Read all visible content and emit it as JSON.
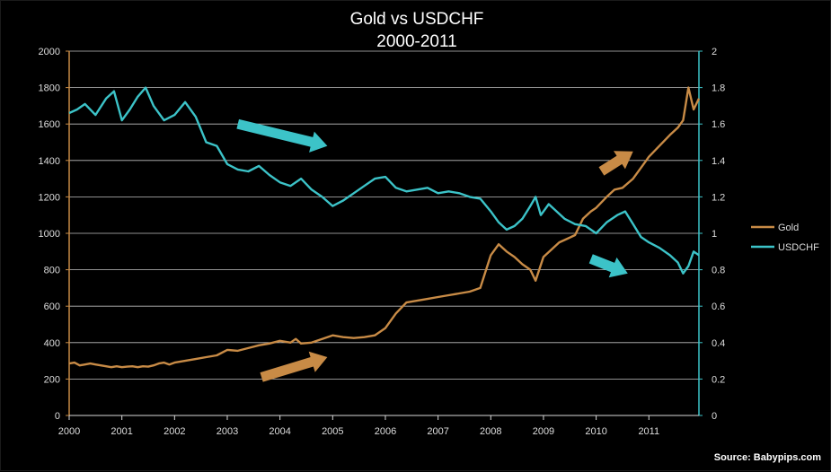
{
  "chart_data": {
    "type": "line",
    "title": "Gold vs USDCHF",
    "subtitle": "2000-2011",
    "source": "Source: Babypips.com",
    "x_ticks": [
      "2000",
      "2001",
      "2002",
      "2003",
      "2004",
      "2005",
      "2006",
      "2007",
      "2008",
      "2009",
      "2010",
      "2011"
    ],
    "xlim": [
      2000,
      2011.95
    ],
    "y_left": {
      "min": 0,
      "max": 2000,
      "ticks": [
        "0",
        "200",
        "400",
        "600",
        "800",
        "1000",
        "1200",
        "1400",
        "1600",
        "1800",
        "2000"
      ]
    },
    "y_right": {
      "min": 0,
      "max": 2,
      "ticks": [
        "0",
        "0.2",
        "0.4",
        "0.6",
        "0.8",
        "1",
        "1.2",
        "1.4",
        "1.6",
        "1.8",
        "2"
      ]
    },
    "grid": "horizontal",
    "legend_position": "right",
    "colors": {
      "gold": "#c88b46",
      "usdchf": "#3cc3c8",
      "axis_left": "#c88b46",
      "axis_right": "#3cc3c8",
      "grid": "#bfbfbf"
    },
    "series": [
      {
        "name": "Gold",
        "axis": "left",
        "x": [
          2000.0,
          2000.1,
          2000.2,
          2000.3,
          2000.4,
          2000.5,
          2000.6,
          2000.7,
          2000.8,
          2000.9,
          2001.0,
          2001.1,
          2001.2,
          2001.3,
          2001.4,
          2001.5,
          2001.6,
          2001.7,
          2001.8,
          2001.9,
          2002.0,
          2002.2,
          2002.4,
          2002.6,
          2002.8,
          2003.0,
          2003.2,
          2003.4,
          2003.6,
          2003.8,
          2004.0,
          2004.2,
          2004.3,
          2004.4,
          2004.6,
          2004.8,
          2005.0,
          2005.2,
          2005.4,
          2005.6,
          2005.8,
          2006.0,
          2006.2,
          2006.4,
          2006.6,
          2006.8,
          2007.0,
          2007.2,
          2007.4,
          2007.6,
          2007.8,
          2008.0,
          2008.15,
          2008.3,
          2008.45,
          2008.6,
          2008.75,
          2008.85,
          2009.0,
          2009.15,
          2009.3,
          2009.45,
          2009.6,
          2009.75,
          2009.9,
          2010.0,
          2010.2,
          2010.35,
          2010.5,
          2010.7,
          2010.9,
          2011.0,
          2011.2,
          2011.4,
          2011.55,
          2011.65,
          2011.75,
          2011.85,
          2011.95
        ],
        "values": [
          285,
          290,
          275,
          280,
          285,
          280,
          275,
          270,
          265,
          270,
          265,
          268,
          270,
          265,
          270,
          268,
          275,
          285,
          290,
          280,
          290,
          300,
          310,
          320,
          330,
          360,
          355,
          370,
          385,
          395,
          410,
          400,
          420,
          395,
          400,
          420,
          440,
          430,
          425,
          430,
          440,
          480,
          560,
          620,
          630,
          640,
          650,
          660,
          670,
          680,
          700,
          880,
          940,
          900,
          870,
          830,
          800,
          740,
          870,
          910,
          950,
          970,
          990,
          1080,
          1120,
          1140,
          1200,
          1240,
          1250,
          1300,
          1380,
          1420,
          1480,
          1540,
          1580,
          1620,
          1800,
          1680,
          1740
        ]
      },
      {
        "name": "USDCHF",
        "axis": "right",
        "x": [
          2000.0,
          2000.15,
          2000.3,
          2000.5,
          2000.7,
          2000.85,
          2001.0,
          2001.15,
          2001.3,
          2001.45,
          2001.6,
          2001.8,
          2002.0,
          2002.2,
          2002.4,
          2002.6,
          2002.8,
          2003.0,
          2003.2,
          2003.4,
          2003.6,
          2003.8,
          2004.0,
          2004.2,
          2004.4,
          2004.6,
          2004.8,
          2005.0,
          2005.2,
          2005.4,
          2005.6,
          2005.8,
          2006.0,
          2006.2,
          2006.4,
          2006.6,
          2006.8,
          2007.0,
          2007.2,
          2007.4,
          2007.6,
          2007.8,
          2008.0,
          2008.15,
          2008.3,
          2008.45,
          2008.6,
          2008.75,
          2008.85,
          2008.95,
          2009.1,
          2009.25,
          2009.4,
          2009.6,
          2009.8,
          2010.0,
          2010.2,
          2010.4,
          2010.55,
          2010.7,
          2010.85,
          2011.0,
          2011.2,
          2011.4,
          2011.55,
          2011.65,
          2011.75,
          2011.85,
          2011.95
        ],
        "values": [
          1.66,
          1.68,
          1.71,
          1.65,
          1.74,
          1.78,
          1.62,
          1.68,
          1.75,
          1.8,
          1.7,
          1.62,
          1.65,
          1.72,
          1.64,
          1.5,
          1.48,
          1.38,
          1.35,
          1.34,
          1.37,
          1.32,
          1.28,
          1.26,
          1.3,
          1.24,
          1.2,
          1.15,
          1.18,
          1.22,
          1.26,
          1.3,
          1.31,
          1.25,
          1.23,
          1.24,
          1.25,
          1.22,
          1.23,
          1.22,
          1.2,
          1.19,
          1.12,
          1.06,
          1.02,
          1.04,
          1.08,
          1.15,
          1.2,
          1.1,
          1.16,
          1.12,
          1.08,
          1.05,
          1.04,
          1.0,
          1.06,
          1.1,
          1.12,
          1.05,
          0.98,
          0.95,
          0.92,
          0.88,
          0.84,
          0.78,
          0.82,
          0.9,
          0.88
        ]
      }
    ],
    "annotations": [
      {
        "name": "usdchf-down-arrow-1",
        "color": "#3cc3c8",
        "from": [
          2003.2,
          1.6
        ],
        "to": [
          2004.9,
          1.48
        ]
      },
      {
        "name": "usdchf-down-arrow-2",
        "color": "#3cc3c8",
        "from": [
          2009.9,
          0.86
        ],
        "to": [
          2010.6,
          0.78
        ]
      },
      {
        "name": "gold-up-arrow-1",
        "color": "#c88b46",
        "from": [
          2003.65,
          210
        ],
        "to": [
          2004.9,
          320
        ]
      },
      {
        "name": "gold-up-arrow-2",
        "color": "#c88b46",
        "from": [
          2010.1,
          1340
        ],
        "to": [
          2010.7,
          1450
        ]
      }
    ]
  }
}
